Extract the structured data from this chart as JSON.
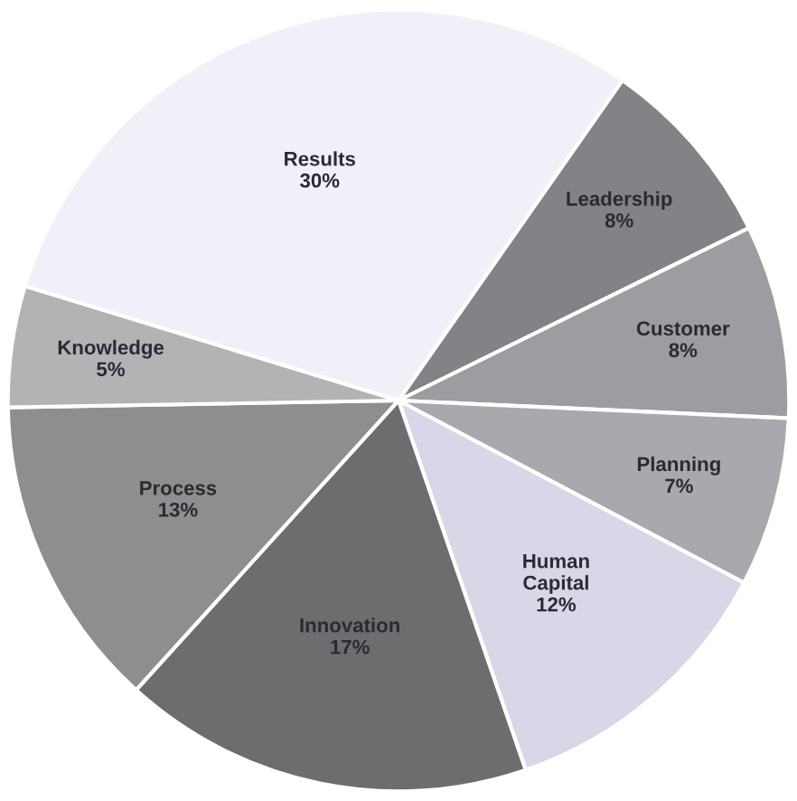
{
  "chart_data": {
    "type": "pie",
    "categories": [
      "Results",
      "Leadership",
      "Customer",
      "Planning",
      "Human Capital",
      "Innovation",
      "Process",
      "Knowledge"
    ],
    "values": [
      30,
      8,
      8,
      7,
      12,
      17,
      13,
      5
    ],
    "value_labels": [
      "30%",
      "8%",
      "8%",
      "7%",
      "12%",
      "17%",
      "13%",
      "5%"
    ],
    "colors": [
      "#f1eff8",
      "#838287",
      "#9d9ca1",
      "#a9a8ad",
      "#d9d6e8",
      "#6d6d70",
      "#8e8e8f",
      "#b3b3b5"
    ]
  }
}
